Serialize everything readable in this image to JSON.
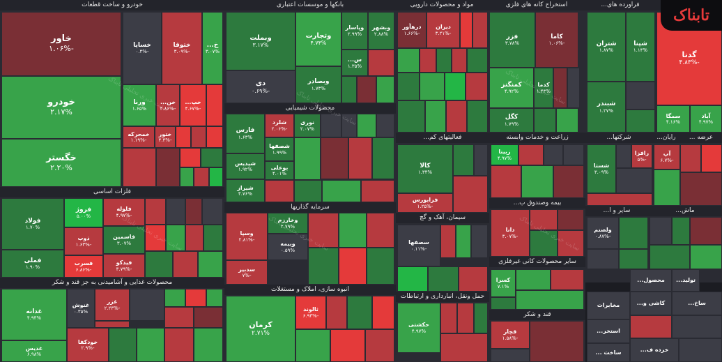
{
  "logo": "تابناک",
  "watermark": "سایت خبری تحلیلی تابناک",
  "sections": [
    {
      "id": "auto",
      "title": "خودرو و ساخت قطعات"
    },
    {
      "id": "banks",
      "title": "بانکها و موسسات اعتباری"
    },
    {
      "id": "pharma",
      "title": "مواد و محصولات دارویی"
    },
    {
      "id": "metalore",
      "title": "استخراج کانه های فلزی"
    },
    {
      "id": "restaurants",
      "title": "فراورده های..."
    },
    {
      "id": "hotel",
      "title": "هتل و رستوران"
    },
    {
      "id": "chemical",
      "title": "محصولات شیمیایی"
    },
    {
      "id": "basemetals",
      "title": "فلزات اساسی"
    },
    {
      "id": "investment",
      "title": "سرمایه گذاریها"
    },
    {
      "id": "food",
      "title": "محصولات غذایی و آشامیدنی به جز قند و شکر"
    },
    {
      "id": "construction",
      "title": "انبوه سازی، املاک و مستغلات"
    },
    {
      "id": "computer",
      "title": "فعالیتهای کم..."
    },
    {
      "id": "agriculture",
      "title": "زراعت و خدمات وابسته"
    },
    {
      "id": "companies",
      "title": "شرکتها..."
    },
    {
      "id": "rayan",
      "title": "رایان..."
    },
    {
      "id": "arze",
      "title": "عرضه ..."
    },
    {
      "id": "insurance",
      "title": "بیمه وصندوق ب..."
    },
    {
      "id": "cement",
      "title": "سیمان، آهک و گچ"
    },
    {
      "id": "other",
      "title": "سایر و ا..."
    },
    {
      "id": "machines",
      "title": "ماش..."
    },
    {
      "id": "nonmetal",
      "title": "سایر محصولات کانی غیرفلزی"
    },
    {
      "id": "transport",
      "title": "حمل ونقل، انبارداری و ارتباطات"
    },
    {
      "id": "sugar",
      "title": "قند و شکر"
    }
  ],
  "tiles": [
    {
      "n": "خاور",
      "p": "-۱.۰۶%"
    },
    {
      "n": "خودرو",
      "p": "۲.۱۷%"
    },
    {
      "n": "خگستر",
      "p": "۲.۲۰%"
    },
    {
      "n": "خساپا",
      "p": "-۰.۴%"
    },
    {
      "n": "ختوقا",
      "p": "-۳.۰۹%"
    },
    {
      "n": "خ...",
      "p": "۳.۰۷%"
    },
    {
      "n": "ورنا",
      "p": "۱.۶۵%"
    },
    {
      "n": "خن...",
      "p": "-۴.۸۶%"
    },
    {
      "n": "خپ...",
      "p": "-۴.۶۷%"
    },
    {
      "n": "خمحرکه",
      "p": "-۱.۱۹%"
    },
    {
      "n": "ختور",
      "p": "-۳.۳%"
    },
    {
      "n": "وبملت",
      "p": "۳.۱۷%"
    },
    {
      "n": "وتجارت",
      "p": "۴.۷۴%"
    },
    {
      "n": "وپاسار",
      "p": "۲.۹۹%"
    },
    {
      "n": "وبشهر",
      "p": "۲.۸۸%"
    },
    {
      "n": "دی",
      "p": "-۰.۶۹%"
    },
    {
      "n": "وبصادر",
      "p": "۱.۷۳%"
    },
    {
      "n": "س...",
      "p": "۱.۳۵%"
    },
    {
      "n": "درهآور",
      "p": "-۱.۶۶%"
    },
    {
      "n": "دیران",
      "p": "-۳.۲۱%"
    },
    {
      "n": "فزر",
      "p": "۳.۷۸%"
    },
    {
      "n": "کاما",
      "p": "-۱.۰۶%"
    },
    {
      "n": "کمنگنز",
      "p": "۴.۹۲%"
    },
    {
      "n": "کگل",
      "p": "۱.۷۹%"
    },
    {
      "n": "کدما",
      "p": "۱.۴۳%"
    },
    {
      "n": "شتران",
      "p": "۱.۸۷%"
    },
    {
      "n": "شپنا",
      "p": "۱.۱۴%"
    },
    {
      "n": "شبندر",
      "p": "۱.۲۷%"
    },
    {
      "n": "گدنا",
      "p": "-۴.۸۳%"
    },
    {
      "n": "سمگا",
      "p": "۴.۱۶%"
    },
    {
      "n": "آباد",
      "p": "۴.۹۷%"
    },
    {
      "n": "فارس",
      "p": "۱.۶۳%"
    },
    {
      "n": "شلرد",
      "p": "-۲.۰۶%"
    },
    {
      "n": "نوری",
      "p": "۲.۰۷%"
    },
    {
      "n": "شصفها",
      "p": "۱.۹۹%"
    },
    {
      "n": "شپدیس",
      "p": "۱.۹۲%"
    },
    {
      "n": "بوعلی",
      "p": "۴.۰۱%"
    },
    {
      "n": "شیراز",
      "p": "۴.۷۶%"
    },
    {
      "n": "فولاد",
      "p": "۱.۷۰%"
    },
    {
      "n": "فروژ",
      "p": "۵.۰۰%"
    },
    {
      "n": "فلوله",
      "p": "-۴.۹۷%"
    },
    {
      "n": "فاسمین",
      "p": "۳.۰۷%"
    },
    {
      "n": "فملی",
      "p": "۱.۹۰%"
    },
    {
      "n": "ذوب",
      "p": "-۱.۶۳%"
    },
    {
      "n": "فسرب",
      "p": "-۶.۸۶%"
    },
    {
      "n": "فیدکو",
      "p": "-۳.۷۹%"
    },
    {
      "n": "وخارزم",
      "p": "۲.۷۹%"
    },
    {
      "n": "وسپا",
      "p": "-۲.۸۱%"
    },
    {
      "n": "وبیمه",
      "p": "۰.۵۹%"
    },
    {
      "n": "سدبیر",
      "p": "-۷%"
    },
    {
      "n": "غدانه",
      "p": "۴.۹۴%"
    },
    {
      "n": "غنوش",
      "p": "۰.۳۵%"
    },
    {
      "n": "غزر",
      "p": "-۲.۲۳%"
    },
    {
      "n": "غدیس",
      "p": "۶.۹۸%"
    },
    {
      "n": "خودکفا",
      "p": "-۲.۹%"
    },
    {
      "n": "ثالوند",
      "p": "-۶.۹۳%"
    },
    {
      "n": "کرمان",
      "p": "۲.۷۱%"
    },
    {
      "n": "کالا",
      "p": "۱.۳۴%"
    },
    {
      "n": "فرابورس",
      "p": "-۱.۲۵%"
    },
    {
      "n": "زبینا",
      "p": "۴.۹۷%"
    },
    {
      "n": "شستا",
      "p": "۳.۰۹%"
    },
    {
      "n": "رافزا",
      "p": "-۵%"
    },
    {
      "n": "آپ",
      "p": "-۶.۷%"
    },
    {
      "n": "دانا",
      "p": "-۳.۰۷%"
    },
    {
      "n": "سصفها",
      "p": "-۰.۱۱%"
    },
    {
      "n": "ولصنم",
      "p": "-۰.۸۷%"
    },
    {
      "n": "کسرا",
      "p": "۷.۱%"
    },
    {
      "n": "حکشتی",
      "p": "۴.۹۷%"
    },
    {
      "n": "قچار",
      "p": "-۱.۵۸%"
    },
    {
      "n": "مخابرات",
      "p": ""
    },
    {
      "n": "استخر...",
      "p": ""
    },
    {
      "n": "ساخت ...",
      "p": ""
    },
    {
      "n": "کاشی و...",
      "p": ""
    },
    {
      "n": "محصول...",
      "p": ""
    },
    {
      "n": "تولید...",
      "p": ""
    },
    {
      "n": "ساخ...",
      "p": ""
    },
    {
      "n": "خرده ف...",
      "p": ""
    }
  ]
}
